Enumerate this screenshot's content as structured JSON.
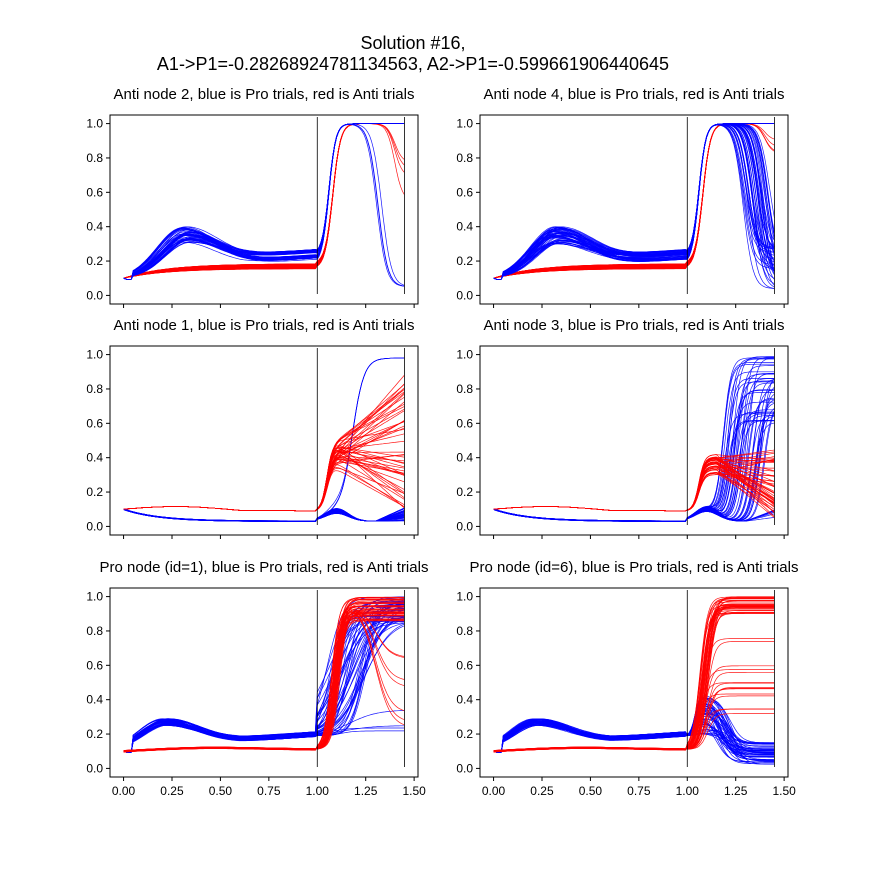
{
  "figure": {
    "suptitle_line1": "Solution #16,",
    "suptitle_line2": "A1->P1=-0.28268924781134563,  A2->P1=-0.599661906440645"
  },
  "series_colors": {
    "pro": "#0000ff",
    "anti": "#ff0000"
  },
  "chart_data": [
    {
      "type": "line",
      "title": "Anti node 2, blue is Pro trials, red is Anti trials",
      "xlim": [
        -0.07,
        1.52
      ],
      "ylim": [
        -0.05,
        1.05
      ],
      "xticks": [
        "",
        "",
        "",
        "",
        "",
        "",
        ""
      ],
      "yticks": [
        "0.0",
        "0.2",
        "0.4",
        "0.6",
        "0.8",
        "1.0"
      ],
      "vline_x": 1.0,
      "vline_x2": 1.45,
      "pro": {
        "n": 50,
        "early_peak": 0.35,
        "peak_spread": 0.05,
        "mid_level": 0.21,
        "mid_spread": 0.03,
        "late_final_min": 0.05,
        "late_final_max": 1.0,
        "late_drop_fraction": 0.02
      },
      "anti": {
        "n": 50,
        "early_level": 0.17,
        "early_spread": 0.015,
        "late_final_min": 0.48,
        "late_final_max": 1.0,
        "late_drop_fraction": 0.04
      }
    },
    {
      "type": "line",
      "title": "Anti node 4, blue is Pro trials, red is Anti trials",
      "xlim": [
        -0.07,
        1.52
      ],
      "ylim": [
        -0.05,
        1.05
      ],
      "xticks": [
        "",
        "",
        "",
        "",
        "",
        "",
        ""
      ],
      "yticks": [
        "0.0",
        "0.2",
        "0.4",
        "0.6",
        "0.8",
        "1.0"
      ],
      "vline_x": 1.0,
      "vline_x2": 1.45,
      "pro": {
        "n": 55,
        "early_peak": 0.35,
        "peak_spread": 0.05,
        "mid_level": 0.21,
        "mid_spread": 0.03,
        "late_final_min": 0.03,
        "late_final_max": 1.0,
        "late_drop_fraction": 0.85
      },
      "anti": {
        "n": 50,
        "early_level": 0.17,
        "early_spread": 0.015,
        "late_final_min": 0.8,
        "late_final_max": 1.0,
        "late_drop_fraction": 0.05
      }
    },
    {
      "type": "line",
      "title": "Anti node 1, blue is Pro trials, red is Anti trials",
      "xlim": [
        -0.07,
        1.52
      ],
      "ylim": [
        -0.05,
        1.05
      ],
      "xticks": [
        "",
        "",
        "",
        "",
        "",
        "",
        ""
      ],
      "yticks": [
        "0.0",
        "0.2",
        "0.4",
        "0.6",
        "0.8",
        "1.0"
      ],
      "vline_x": 1.0,
      "vline_x2": 1.45,
      "pro": {
        "n": 50,
        "early_start": 0.1,
        "early_min": 0.03,
        "bump_peak": 0.09,
        "late_final_min": 0.0,
        "late_final_max": 0.12,
        "late_rise_fraction": 0.04
      },
      "anti": {
        "n": 50,
        "early_peak": 0.12,
        "late_final_min": 0.1,
        "late_final_max": 0.92
      }
    },
    {
      "type": "line",
      "title": "Anti node 3, blue is Pro trials, red is Anti trials",
      "xlim": [
        -0.07,
        1.52
      ],
      "ylim": [
        -0.05,
        1.05
      ],
      "xticks": [
        "",
        "",
        "",
        "",
        "",
        "",
        ""
      ],
      "yticks": [
        "0.0",
        "0.2",
        "0.4",
        "0.6",
        "0.8",
        "1.0"
      ],
      "vline_x": 1.0,
      "vline_x2": 1.45,
      "pro": {
        "n": 55,
        "early_start": 0.1,
        "early_min": 0.03,
        "bump_peak": 0.1,
        "late_final_min": 0.04,
        "late_final_max": 1.0,
        "late_rise_fraction": 0.8
      },
      "anti": {
        "n": 50,
        "early_peak": 0.12,
        "peak_level": 0.38,
        "late_final_min": 0.04,
        "late_final_max": 0.45
      }
    },
    {
      "type": "line",
      "title": "Pro node (id=1), blue is Pro trials, red is Anti trials",
      "xlim": [
        -0.07,
        1.52
      ],
      "ylim": [
        -0.05,
        1.05
      ],
      "xticks": [
        "0.00",
        "0.25",
        "0.50",
        "0.75",
        "1.00",
        "1.25",
        "1.50"
      ],
      "yticks": [
        "0.0",
        "0.2",
        "0.4",
        "0.6",
        "0.8",
        "1.0"
      ],
      "vline_x": 1.0,
      "vline_x2": 1.45,
      "pro": {
        "n": 50,
        "early_peak": 0.27,
        "mid_level": 0.17,
        "late_final_min": 0.05,
        "late_final_max": 1.0
      },
      "anti": {
        "n": 50,
        "early_level": 0.12,
        "late_final_min": 0.15,
        "late_final_max": 1.0
      }
    },
    {
      "type": "line",
      "title": "Pro node (id=6), blue is Pro trials, red is Anti trials",
      "xlim": [
        -0.07,
        1.52
      ],
      "ylim": [
        -0.05,
        1.05
      ],
      "xticks": [
        "0.00",
        "0.25",
        "0.50",
        "0.75",
        "1.00",
        "1.25",
        "1.50"
      ],
      "yticks": [
        "0.0",
        "0.2",
        "0.4",
        "0.6",
        "0.8",
        "1.0"
      ],
      "vline_x": 1.0,
      "vline_x2": 1.45,
      "pro": {
        "n": 50,
        "early_peak": 0.27,
        "mid_level": 0.17,
        "bump_peak": 0.45,
        "late_final_min": 0.02,
        "late_final_max": 0.15
      },
      "anti": {
        "n": 50,
        "early_level": 0.12,
        "late_final_min": 0.3,
        "late_final_max": 1.0
      }
    }
  ]
}
